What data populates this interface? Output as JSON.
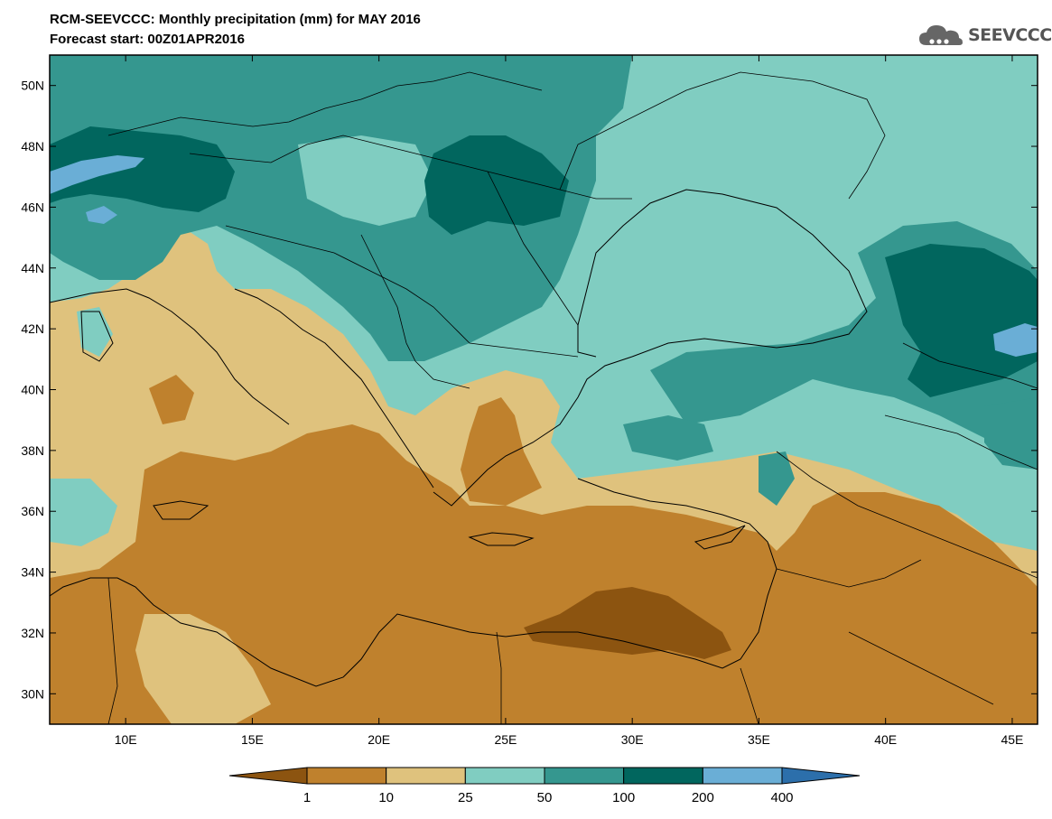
{
  "header": {
    "title": "RCM-SEEVCCC: Monthly precipitation (mm) for MAY 2016",
    "subtitle": "Forecast start: 00Z01APR2016"
  },
  "logo": {
    "text": "SEEVCCC",
    "icon": "cloud-logo-icon",
    "color": "#555555"
  },
  "map": {
    "lon_range": [
      7,
      46
    ],
    "lat_range": [
      29,
      51
    ],
    "lon_ticks": [
      "10E",
      "15E",
      "20E",
      "25E",
      "30E",
      "35E",
      "40E",
      "45E"
    ],
    "lon_tick_values": [
      10,
      15,
      20,
      25,
      30,
      35,
      40,
      45
    ],
    "lat_ticks": [
      "30N",
      "32N",
      "34N",
      "36N",
      "38N",
      "40N",
      "42N",
      "44N",
      "46N",
      "48N",
      "50N"
    ],
    "lat_tick_values": [
      30,
      32,
      34,
      36,
      38,
      40,
      42,
      44,
      46,
      48,
      50
    ]
  },
  "colorbar": {
    "labels": [
      "1",
      "10",
      "25",
      "50",
      "100",
      "200",
      "400"
    ],
    "colors": [
      "#8c5410",
      "#bf812d",
      "#dfc27d",
      "#80cdc1",
      "#35978f",
      "#01665e",
      "#6aaed6",
      "#2c6fab"
    ]
  }
}
